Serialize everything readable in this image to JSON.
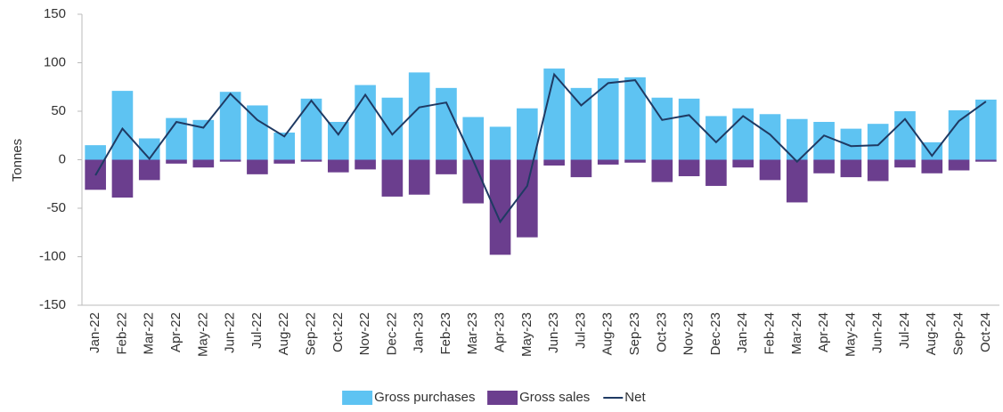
{
  "chart_data": {
    "type": "bar_line",
    "y_label": "Tonnes",
    "categories": [
      "Jan-22",
      "Feb-22",
      "Mar-22",
      "Apr-22",
      "May-22",
      "Jun-22",
      "Jul-22",
      "Aug-22",
      "Sep-22",
      "Oct-22",
      "Nov-22",
      "Dec-22",
      "Jan-23",
      "Feb-23",
      "Mar-23",
      "Apr-23",
      "May-23",
      "Jun-23",
      "Jul-23",
      "Aug-23",
      "Sep-23",
      "Oct-23",
      "Nov-23",
      "Dec-23",
      "Jan-24",
      "Feb-24",
      "Mar-24",
      "Apr-24",
      "May-24",
      "Jun-24",
      "Jul-24",
      "Aug-24",
      "Sep-24",
      "Oct-24"
    ],
    "series": [
      {
        "name": "Gross purchases",
        "kind": "bar",
        "color": "#5ec3f2",
        "values": [
          15,
          71,
          22,
          43,
          41,
          70,
          56,
          28,
          63,
          39,
          77,
          64,
          90,
          74,
          44,
          34,
          53,
          94,
          74,
          84,
          85,
          64,
          63,
          45,
          53,
          47,
          42,
          39,
          32,
          37,
          50,
          18,
          51,
          62
        ]
      },
      {
        "name": "Gross sales",
        "kind": "bar",
        "color": "#6b3e8e",
        "values": [
          -31,
          -39,
          -21,
          -4,
          -8,
          -2,
          -15,
          -4,
          -2,
          -13,
          -10,
          -38,
          -36,
          -15,
          -45,
          -98,
          -80,
          -6,
          -18,
          -5,
          -3,
          -23,
          -17,
          -27,
          -8,
          -21,
          -44,
          -14,
          -18,
          -22,
          -8,
          -14,
          -11,
          -2
        ]
      },
      {
        "name": "Net",
        "kind": "line",
        "color": "#1f3a63",
        "values": [
          -16,
          32,
          1,
          39,
          33,
          68,
          41,
          24,
          61,
          26,
          67,
          26,
          54,
          59,
          -1,
          -64,
          -27,
          88,
          56,
          79,
          82,
          41,
          46,
          18,
          45,
          26,
          -2,
          25,
          14,
          15,
          42,
          4,
          40,
          60
        ]
      }
    ],
    "ylim": [
      -150,
      150
    ],
    "yticks": [
      -150,
      -100,
      -50,
      0,
      50,
      100,
      150
    ],
    "grid": false
  }
}
